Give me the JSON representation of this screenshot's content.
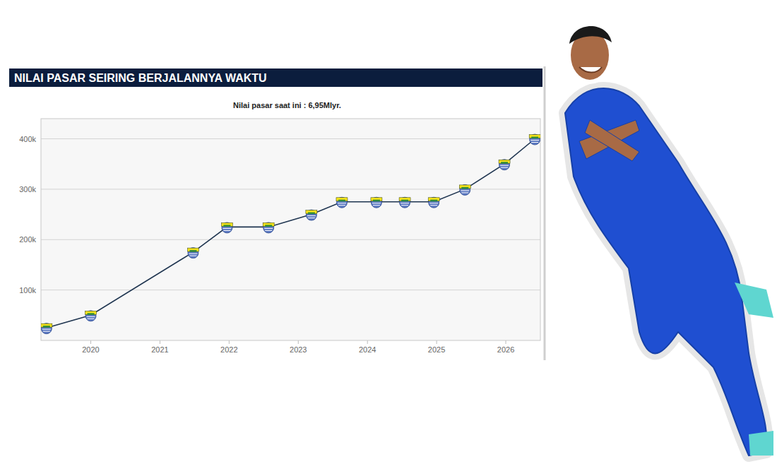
{
  "chart_data": {
    "type": "line",
    "title": "NILAI PASAR SEIRING BERJALANNYA WAKTU",
    "subtitle": "Nilai pasar saat ini : 6,95Mlyr.",
    "x": [
      2019.36,
      2020.0,
      2021.48,
      2021.97,
      2022.57,
      2023.19,
      2023.63,
      2024.13,
      2024.54,
      2024.96,
      2025.41,
      2025.98,
      2026.42
    ],
    "values": [
      25000,
      50000,
      175000,
      225000,
      225000,
      250000,
      275000,
      275000,
      275000,
      275000,
      300000,
      350000,
      400000
    ],
    "color": "#1f3550",
    "marker": "badge",
    "xlim": [
      2019.28,
      2026.5
    ],
    "xticks": [
      2020,
      2021,
      2022,
      2023,
      2024,
      2025,
      2026
    ],
    "ylim": [
      0,
      440000
    ],
    "yticks": [
      {
        "value": 100000,
        "label": "100k"
      },
      {
        "value": 200000,
        "label": "200k"
      },
      {
        "value": 300000,
        "label": "300k"
      },
      {
        "value": 400000,
        "label": "400k"
      }
    ],
    "grid": true
  }
}
